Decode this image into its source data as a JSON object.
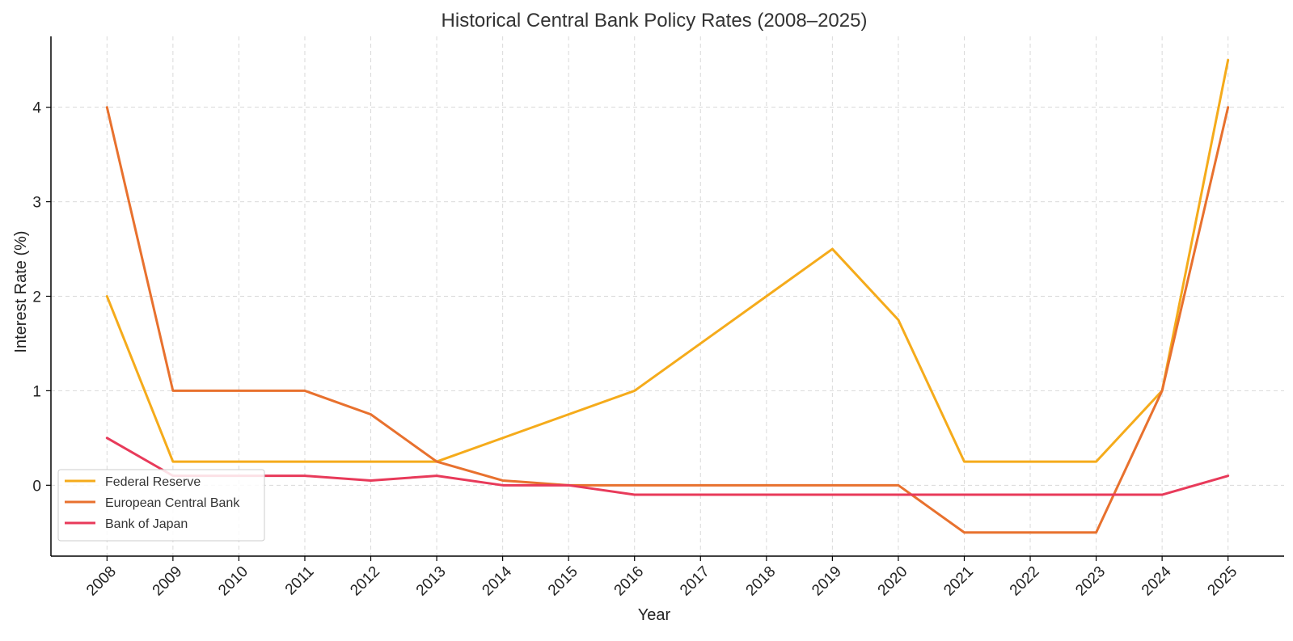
{
  "chart_data": {
    "type": "line",
    "title": "Historical Central Bank Policy Rates (2008–2025)",
    "xlabel": "Year",
    "ylabel": "Interest Rate (%)",
    "x": [
      2008,
      2009,
      2010,
      2011,
      2012,
      2013,
      2014,
      2015,
      2016,
      2017,
      2018,
      2019,
      2020,
      2021,
      2022,
      2023,
      2024,
      2025
    ],
    "ylim": [
      -0.75,
      4.75
    ],
    "yticks": [
      0,
      1,
      2,
      3,
      4
    ],
    "grid": true,
    "legend_position": "lower-left",
    "series": [
      {
        "name": "Federal Reserve",
        "color": "#F5AB1B",
        "values": [
          2.0,
          0.25,
          0.25,
          0.25,
          0.25,
          0.25,
          0.5,
          0.75,
          1.0,
          1.5,
          2.0,
          2.5,
          1.75,
          0.25,
          0.25,
          0.25,
          1.0,
          4.5
        ]
      },
      {
        "name": "European Central Bank",
        "color": "#E8712E",
        "values": [
          4.0,
          1.0,
          1.0,
          1.0,
          0.75,
          0.25,
          0.05,
          0.0,
          0.0,
          0.0,
          0.0,
          0.0,
          0.0,
          -0.5,
          -0.5,
          -0.5,
          1.0,
          4.0
        ]
      },
      {
        "name": "Bank of Japan",
        "color": "#E83A5A",
        "values": [
          0.5,
          0.1,
          0.1,
          0.1,
          0.05,
          0.1,
          0.0,
          0.0,
          -0.1,
          -0.1,
          -0.1,
          -0.1,
          -0.1,
          -0.1,
          -0.1,
          -0.1,
          -0.1,
          0.1
        ]
      }
    ]
  }
}
